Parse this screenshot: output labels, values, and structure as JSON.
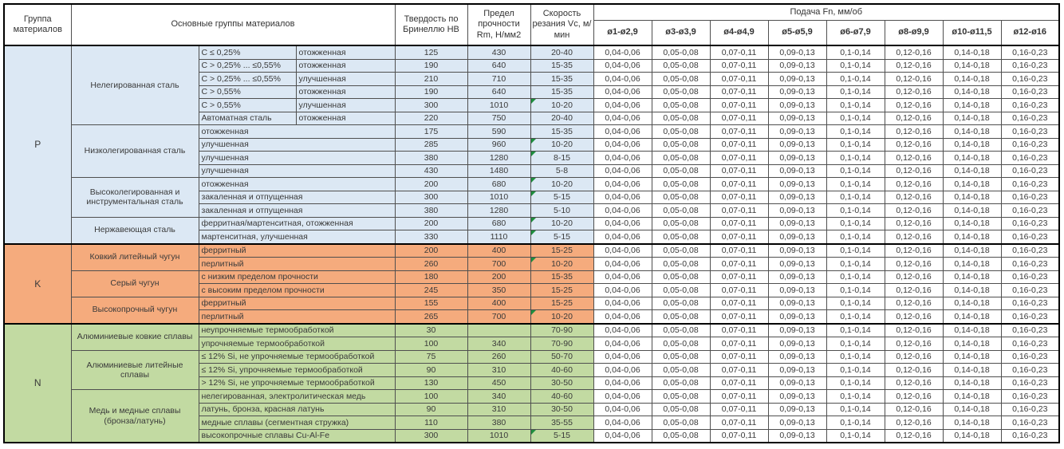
{
  "header": {
    "group_col": "Группа материалов",
    "materials_col": "Основные группы материалов",
    "hb_col": "Твердость по Бринеллю HB",
    "rm_col": "Предел прочности Rm, Н/мм2",
    "vc_col": "Скорость резания Vc, м/мин",
    "feed_title": "Подача Fn, мм/об",
    "feed_cols": [
      "ø1-ø2,9",
      "ø3-ø3,9",
      "ø4-ø4,9",
      "ø5-ø5,9",
      "ø6-ø7,9",
      "ø8-ø9,9",
      "ø10-ø11,5",
      "ø12-ø16"
    ]
  },
  "feed_values": [
    "0,04-0,06",
    "0,05-0,08",
    "0,07-0,11",
    "0,09-0,13",
    "0,1-0,14",
    "0,12-0,16",
    "0,14-0,18",
    "0,16-0,23"
  ],
  "comment_indicator_color": "#1e8f3e",
  "groups": [
    {
      "letter": "P",
      "color": "#dce8f4",
      "subgroups": [
        {
          "name": "Нелегированная сталь",
          "rows": [
            {
              "b": "C ≤ 0,25%",
              "c": "отожженная",
              "hb": "125",
              "rm": "430",
              "vc": "20-40",
              "note": false
            },
            {
              "b": "C > 0,25% ... ≤0,55%",
              "c": "отожженная",
              "hb": "190",
              "rm": "640",
              "vc": "15-35",
              "note": false
            },
            {
              "b": "C > 0,25% ... ≤0,55%",
              "c": "улучшенная",
              "hb": "210",
              "rm": "710",
              "vc": "15-35",
              "note": false
            },
            {
              "b": "C > 0,55%",
              "c": "отожженная",
              "hb": "190",
              "rm": "640",
              "vc": "15-35",
              "note": false
            },
            {
              "b": "C > 0,55%",
              "c": "улучшенная",
              "hb": "300",
              "rm": "1010",
              "vc": "10-20",
              "note": true
            },
            {
              "b": "Автоматная сталь",
              "c": "отожженная",
              "hb": "220",
              "rm": "750",
              "vc": "20-40",
              "note": false
            }
          ]
        },
        {
          "name": "Низколегированная сталь",
          "rows": [
            {
              "c": "отожженная",
              "hb": "175",
              "rm": "590",
              "vc": "15-35",
              "note": false
            },
            {
              "c": "улучшенная",
              "hb": "285",
              "rm": "960",
              "vc": "10-20",
              "note": true
            },
            {
              "c": "улучшенная",
              "hb": "380",
              "rm": "1280",
              "vc": "8-15",
              "note": true
            },
            {
              "c": "улучшенная",
              "hb": "430",
              "rm": "1480",
              "vc": "5-8",
              "note": false
            }
          ]
        },
        {
          "name": "Высоколегированная и инструментальная сталь",
          "rows": [
            {
              "c": "отожженная",
              "hb": "200",
              "rm": "680",
              "vc": "10-20",
              "note": true
            },
            {
              "c": "закаленная и отпущенная",
              "hb": "300",
              "rm": "1010",
              "vc": "5-15",
              "note": true
            },
            {
              "c": "закаленная и отпущенная",
              "hb": "380",
              "rm": "1280",
              "vc": "5-10",
              "note": false
            }
          ]
        },
        {
          "name": "Нержавеющая сталь",
          "rows": [
            {
              "c": "ферритная/мартенситная, отожженная",
              "hb": "200",
              "rm": "680",
              "vc": "10-20",
              "note": true
            },
            {
              "c": "мартенситная, улучшенная",
              "hb": "330",
              "rm": "1110",
              "vc": "5-15",
              "note": true
            }
          ]
        }
      ]
    },
    {
      "letter": "K",
      "color": "#f5ab7d",
      "subgroups": [
        {
          "name": "Ковкий литейный чугун",
          "rows": [
            {
              "c": "ферритный",
              "hb": "200",
              "rm": "400",
              "vc": "15-25",
              "note": false
            },
            {
              "c": "перлитный",
              "hb": "260",
              "rm": "700",
              "vc": "10-20",
              "note": true
            }
          ]
        },
        {
          "name": "Серый чугун",
          "rows": [
            {
              "c": "с низким пределом прочности",
              "hb": "180",
              "rm": "200",
              "vc": "15-35",
              "note": false
            },
            {
              "c": "с высоким пределом прочности",
              "hb": "245",
              "rm": "350",
              "vc": "15-25",
              "note": false
            }
          ]
        },
        {
          "name": "Высокопрочный чугун",
          "rows": [
            {
              "c": "ферритный",
              "hb": "155",
              "rm": "400",
              "vc": "15-25",
              "note": false
            },
            {
              "c": "перлитный",
              "hb": "265",
              "rm": "700",
              "vc": "10-20",
              "note": true
            }
          ]
        }
      ]
    },
    {
      "letter": "N",
      "color": "#c2daa2",
      "subgroups": [
        {
          "name": "Алюминиевые ковкие сплавы",
          "rows": [
            {
              "c": "неупрочняемые термообработкой",
              "hb": "30",
              "rm": "",
              "vc": "70-90",
              "note": false
            },
            {
              "c": "упрочняемые термообработкой",
              "hb": "100",
              "rm": "340",
              "vc": "70-90",
              "note": false
            }
          ]
        },
        {
          "name": "Алюминиевые литейные сплавы",
          "rows": [
            {
              "c": "≤ 12% Si, не упрочняемые термообработкой",
              "hb": "75",
              "rm": "260",
              "vc": "50-70",
              "note": false
            },
            {
              "c": "≤ 12% Si, упрочняемые термообработкой",
              "hb": "90",
              "rm": "310",
              "vc": "40-60",
              "note": false
            },
            {
              "c": "> 12% Si, не упрочняемые термообработкой",
              "hb": "130",
              "rm": "450",
              "vc": "30-50",
              "note": false
            }
          ]
        },
        {
          "name": "Медь и медные сплавы (бронза/латунь)",
          "rows": [
            {
              "c": "нелегированная, электролитическая медь",
              "hb": "100",
              "rm": "340",
              "vc": "40-60",
              "note": false
            },
            {
              "c": "латунь, бронза, красная латунь",
              "hb": "90",
              "rm": "310",
              "vc": "30-50",
              "note": false
            },
            {
              "c": "медные сплавы (сегментная стружка)",
              "hb": "110",
              "rm": "380",
              "vc": "35-55",
              "note": false
            },
            {
              "c": "высокопрочные сплавы Cu-Al-Fe",
              "hb": "300",
              "rm": "1010",
              "vc": "5-15",
              "note": true
            }
          ]
        }
      ]
    }
  ]
}
